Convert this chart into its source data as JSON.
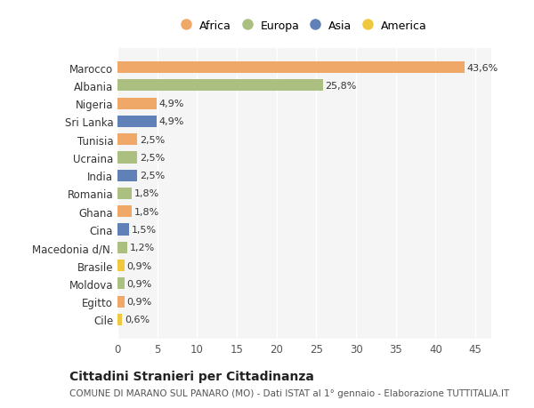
{
  "countries": [
    "Marocco",
    "Albania",
    "Nigeria",
    "Sri Lanka",
    "Tunisia",
    "Ucraina",
    "India",
    "Romania",
    "Ghana",
    "Cina",
    "Macedonia d/N.",
    "Brasile",
    "Moldova",
    "Egitto",
    "Cile"
  ],
  "values": [
    43.6,
    25.8,
    4.9,
    4.9,
    2.5,
    2.5,
    2.5,
    1.8,
    1.8,
    1.5,
    1.2,
    0.9,
    0.9,
    0.9,
    0.6
  ],
  "labels": [
    "43,6%",
    "25,8%",
    "4,9%",
    "4,9%",
    "2,5%",
    "2,5%",
    "2,5%",
    "1,8%",
    "1,8%",
    "1,5%",
    "1,2%",
    "0,9%",
    "0,9%",
    "0,9%",
    "0,6%"
  ],
  "regions": [
    "Africa",
    "Europa",
    "Africa",
    "Asia",
    "Africa",
    "Europa",
    "Asia",
    "Europa",
    "Africa",
    "Asia",
    "Europa",
    "America",
    "Europa",
    "Africa",
    "America"
  ],
  "colors": {
    "Africa": "#F0A868",
    "Europa": "#AABF80",
    "Asia": "#6080B8",
    "America": "#F0C840"
  },
  "legend_order": [
    "Africa",
    "Europa",
    "Asia",
    "America"
  ],
  "title": "Cittadini Stranieri per Cittadinanza",
  "subtitle": "COMUNE DI MARANO SUL PANARO (MO) - Dati ISTAT al 1° gennaio - Elaborazione TUTTITALIA.IT",
  "xlim": [
    0,
    47
  ],
  "xticks": [
    0,
    5,
    10,
    15,
    20,
    25,
    30,
    35,
    40,
    45
  ],
  "background_color": "#FFFFFF",
  "plot_bg_color": "#F5F5F5",
  "grid_color": "#FFFFFF",
  "bar_height": 0.65
}
